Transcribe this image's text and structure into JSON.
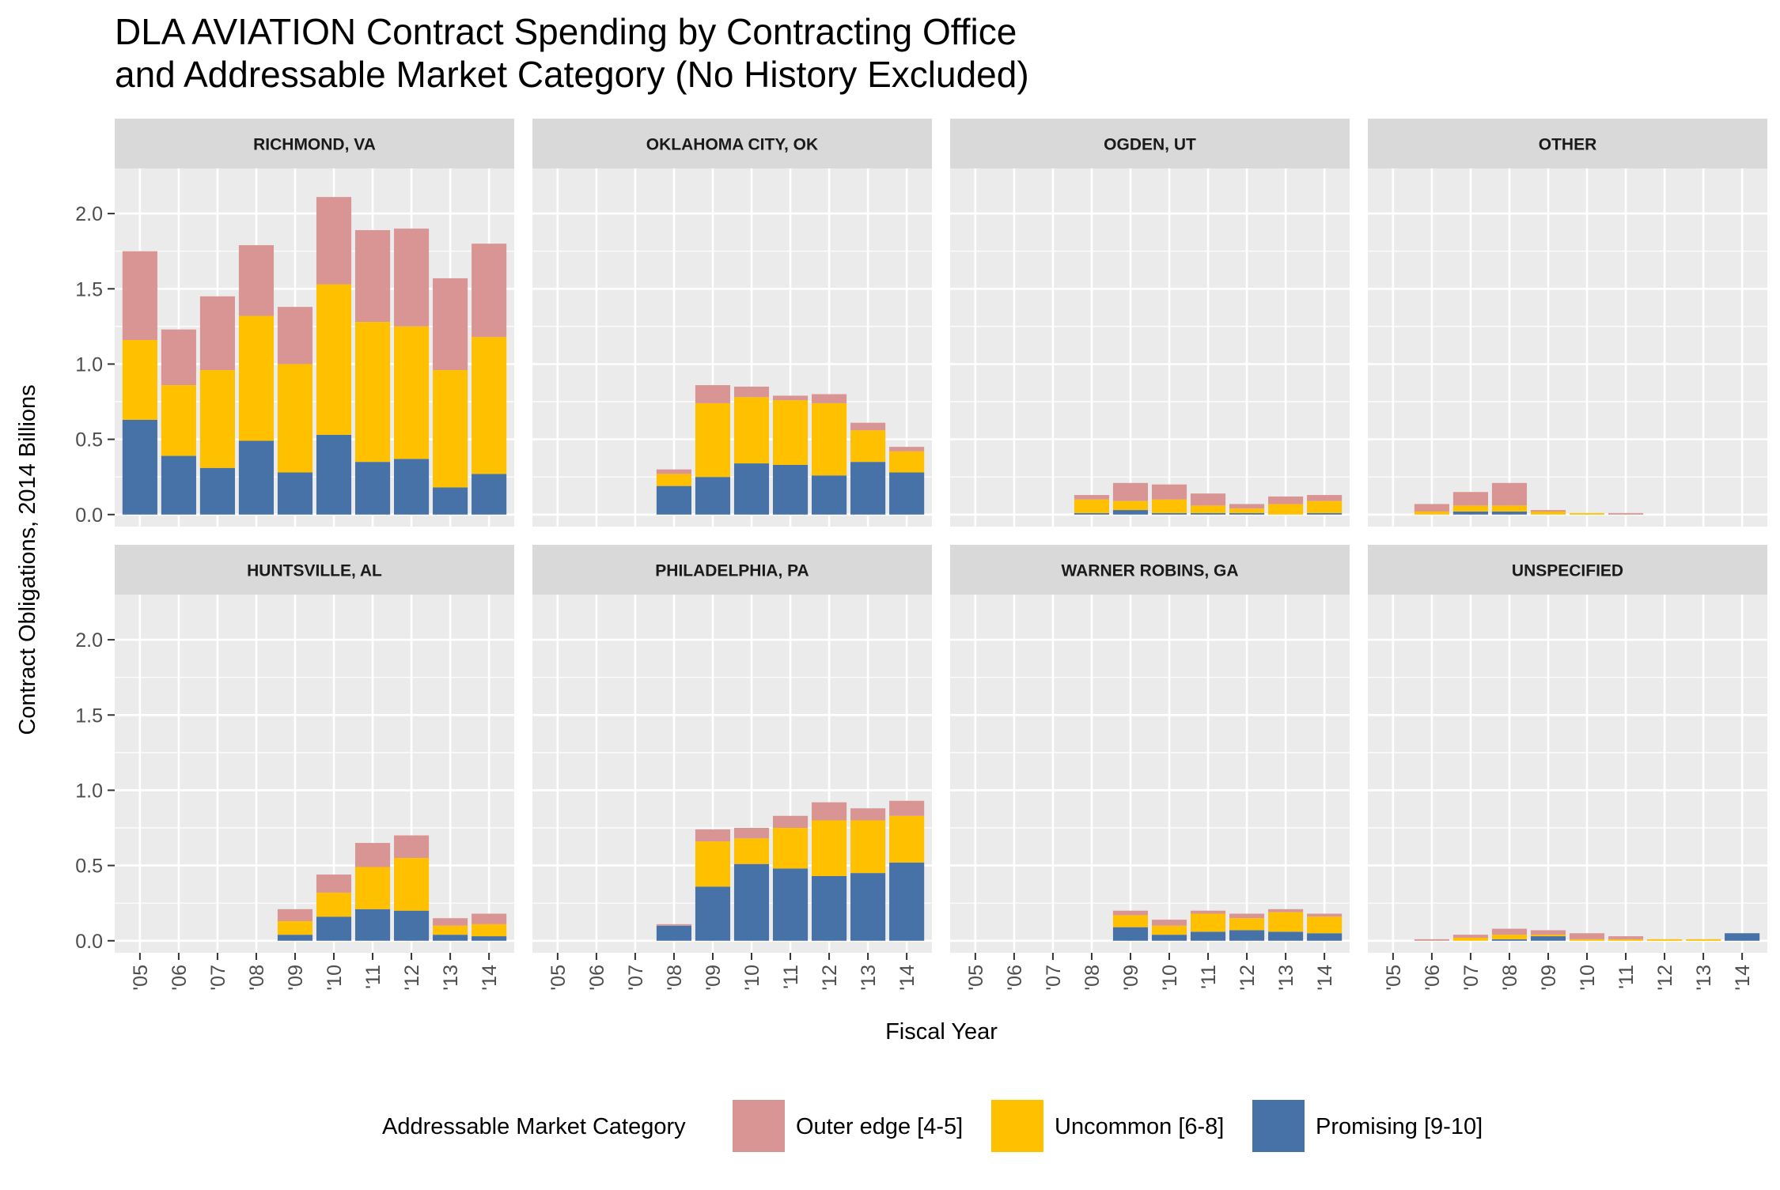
{
  "colors": {
    "outer_edge": "#d99594",
    "uncommon": "#ffc000",
    "promising": "#4672a8",
    "panel_bg": "#ebebeb",
    "strip_bg": "#d9d9d9",
    "grid": "#ffffff"
  },
  "chart_data": {
    "type": "bar",
    "stacked": true,
    "faceted": true,
    "title": "DLA AVIATION Contract Spending by Contracting Office\nand Addressable Market Category (No History Excluded)",
    "xlabel": "Fiscal Year",
    "ylabel": "Contract Obligations, 2014 Billions",
    "ylim": [
      -0.08,
      2.3
    ],
    "yticks": [
      0.0,
      0.5,
      1.0,
      1.5,
      2.0
    ],
    "ytick_labels": [
      "0.0",
      "0.5",
      "1.0",
      "1.5",
      "2.0"
    ],
    "categories": [
      "'05",
      "'06",
      "'07",
      "'08",
      "'09",
      "'10",
      "'11",
      "'12",
      "'13",
      "'14"
    ],
    "legend": {
      "title": "Addressable Market Category",
      "position": "bottom",
      "items": [
        {
          "label": "Outer edge [4-5]",
          "color": "#d99594"
        },
        {
          "label": "Uncommon [6-8]",
          "color": "#ffc000"
        },
        {
          "label": "Promising [9-10]",
          "color": "#4672a8"
        }
      ]
    },
    "stack_order_bottom_to_top": [
      "Promising [9-10]",
      "Uncommon [6-8]",
      "Outer edge [4-5]"
    ],
    "panels": [
      {
        "label": "RICHMOND, VA",
        "series": [
          {
            "name": "Promising [9-10]",
            "values": [
              0.63,
              0.39,
              0.31,
              0.49,
              0.28,
              0.53,
              0.35,
              0.37,
              0.18,
              0.27
            ]
          },
          {
            "name": "Uncommon [6-8]",
            "values": [
              0.53,
              0.47,
              0.65,
              0.83,
              0.72,
              1.0,
              0.93,
              0.88,
              0.78,
              0.91
            ]
          },
          {
            "name": "Outer edge [4-5]",
            "values": [
              0.59,
              0.37,
              0.49,
              0.47,
              0.38,
              0.58,
              0.61,
              0.65,
              0.61,
              0.62
            ]
          }
        ]
      },
      {
        "label": "OKLAHOMA CITY, OK",
        "series": [
          {
            "name": "Promising [9-10]",
            "values": [
              0,
              0,
              0,
              0.19,
              0.25,
              0.34,
              0.33,
              0.26,
              0.35,
              0.28
            ]
          },
          {
            "name": "Uncommon [6-8]",
            "values": [
              0,
              0,
              0,
              0.08,
              0.49,
              0.44,
              0.43,
              0.48,
              0.21,
              0.14
            ]
          },
          {
            "name": "Outer edge [4-5]",
            "values": [
              0,
              0,
              0,
              0.03,
              0.12,
              0.07,
              0.03,
              0.06,
              0.05,
              0.03
            ]
          }
        ]
      },
      {
        "label": "OGDEN, UT",
        "series": [
          {
            "name": "Promising [9-10]",
            "values": [
              0,
              0,
              0,
              0.01,
              0.03,
              0.01,
              0.01,
              0.01,
              0.0,
              0.01
            ]
          },
          {
            "name": "Uncommon [6-8]",
            "values": [
              0,
              0,
              0,
              0.09,
              0.06,
              0.09,
              0.05,
              0.03,
              0.07,
              0.08
            ]
          },
          {
            "name": "Outer edge [4-5]",
            "values": [
              0,
              0,
              0,
              0.03,
              0.12,
              0.1,
              0.08,
              0.03,
              0.05,
              0.04
            ]
          }
        ]
      },
      {
        "label": "OTHER",
        "series": [
          {
            "name": "Promising [9-10]",
            "values": [
              0,
              0.0,
              0.02,
              0.02,
              0.0,
              0.0,
              0.0,
              0,
              0,
              0
            ]
          },
          {
            "name": "Uncommon [6-8]",
            "values": [
              0,
              0.02,
              0.04,
              0.04,
              0.02,
              0.01,
              0.0,
              0,
              0,
              0
            ]
          },
          {
            "name": "Outer edge [4-5]",
            "values": [
              0,
              0.05,
              0.09,
              0.15,
              0.01,
              0.0,
              0.01,
              0,
              0,
              0
            ]
          }
        ]
      },
      {
        "label": "HUNTSVILLE, AL",
        "series": [
          {
            "name": "Promising [9-10]",
            "values": [
              0,
              0,
              0,
              0,
              0.04,
              0.16,
              0.21,
              0.2,
              0.04,
              0.03
            ]
          },
          {
            "name": "Uncommon [6-8]",
            "values": [
              0,
              0,
              0,
              0,
              0.09,
              0.16,
              0.28,
              0.35,
              0.06,
              0.08
            ]
          },
          {
            "name": "Outer edge [4-5]",
            "values": [
              0,
              0,
              0,
              0,
              0.08,
              0.12,
              0.16,
              0.15,
              0.05,
              0.07
            ]
          }
        ]
      },
      {
        "label": "PHILADELPHIA, PA",
        "series": [
          {
            "name": "Promising [9-10]",
            "values": [
              0,
              0,
              0,
              0.1,
              0.36,
              0.51,
              0.48,
              0.43,
              0.45,
              0.52
            ]
          },
          {
            "name": "Uncommon [6-8]",
            "values": [
              0,
              0,
              0,
              0.0,
              0.3,
              0.17,
              0.27,
              0.37,
              0.35,
              0.31
            ]
          },
          {
            "name": "Outer edge [4-5]",
            "values": [
              0,
              0,
              0,
              0.01,
              0.08,
              0.07,
              0.08,
              0.12,
              0.08,
              0.1
            ]
          }
        ]
      },
      {
        "label": "WARNER ROBINS, GA",
        "series": [
          {
            "name": "Promising [9-10]",
            "values": [
              0,
              0,
              0,
              0,
              0.09,
              0.04,
              0.06,
              0.07,
              0.06,
              0.05
            ]
          },
          {
            "name": "Uncommon [6-8]",
            "values": [
              0,
              0,
              0,
              0,
              0.08,
              0.06,
              0.12,
              0.08,
              0.13,
              0.11
            ]
          },
          {
            "name": "Outer edge [4-5]",
            "values": [
              0,
              0,
              0,
              0,
              0.03,
              0.04,
              0.02,
              0.03,
              0.02,
              0.02
            ]
          }
        ]
      },
      {
        "label": "UNSPECIFIED",
        "series": [
          {
            "name": "Promising [9-10]",
            "values": [
              0,
              0.0,
              0.0,
              0.01,
              0.03,
              0.0,
              0.0,
              0.0,
              0.0,
              0.05
            ]
          },
          {
            "name": "Uncommon [6-8]",
            "values": [
              0,
              0.0,
              0.02,
              0.03,
              0.01,
              0.01,
              0.01,
              0.01,
              0.01,
              0.0
            ]
          },
          {
            "name": "Outer edge [4-5]",
            "values": [
              0,
              0.01,
              0.02,
              0.04,
              0.03,
              0.04,
              0.02,
              0.0,
              0.0,
              0.0
            ]
          }
        ]
      }
    ]
  }
}
